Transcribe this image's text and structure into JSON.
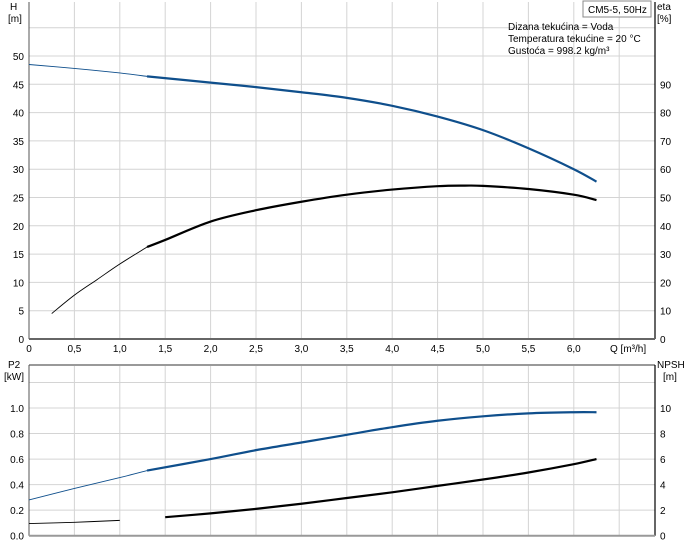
{
  "chart_data": [
    {
      "type": "line",
      "title": "CM5-5, 50Hz",
      "annotations": [
        "Dizana tekućina = Voda",
        "Temperatura tekućine = 20 °C",
        "Gustoća = 998.2 kg/m³"
      ],
      "xlabel": "Q [m³/h]",
      "xticks": [
        "0",
        "0,5",
        "1,0",
        "1,5",
        "2,0",
        "2,5",
        "3,0",
        "3,5",
        "4,0",
        "4,5",
        "5,0",
        "5,5",
        "6,0"
      ],
      "xlim": [
        0,
        6.9
      ],
      "ylabel_left": [
        "H",
        "[m]"
      ],
      "ylabel_right": [
        "eta",
        "[%]"
      ],
      "yticks_left": [
        5,
        10,
        15,
        20,
        25,
        30,
        35,
        40,
        45,
        50
      ],
      "yticks_right": [
        0,
        10,
        20,
        30,
        40,
        50,
        60,
        70,
        80,
        90
      ],
      "x_zero_label": "0",
      "ylim_left": [
        0,
        59.5
      ],
      "ylim_right": [
        0,
        119
      ],
      "grid": true,
      "series": [
        {
          "axis": "left",
          "color": "#0f4f8c",
          "x": [
            0,
            0.5,
            1,
            1.3,
            2,
            2.5,
            3,
            3.5,
            4,
            4.5,
            5,
            5.5,
            6,
            6.25
          ],
          "y": [
            48.5,
            47.8,
            47.0,
            46.4,
            45.3,
            44.5,
            43.6,
            42.6,
            41.2,
            39.3,
            36.9,
            33.7,
            30.0,
            27.8
          ]
        },
        {
          "axis": "right",
          "color": "#000000",
          "x": [
            0.25,
            0.5,
            0.75,
            1,
            1.3,
            1.5,
            2,
            2.5,
            3,
            3.5,
            4,
            4.5,
            4.8,
            5,
            5.5,
            6,
            6.25
          ],
          "y": [
            9,
            15.5,
            21,
            26.5,
            32.5,
            35,
            41.5,
            45.5,
            48.5,
            51,
            52.8,
            54,
            54.2,
            54.1,
            53,
            51,
            49.1
          ]
        }
      ]
    },
    {
      "type": "line",
      "ylabel_left": [
        "P2",
        "[kW]"
      ],
      "ylabel_right": [
        "NPSH",
        "[m]"
      ],
      "yticks_left": [
        "0.0",
        "0.2",
        "0.4",
        "0.6",
        "0.8",
        "1.0"
      ],
      "yticks_right": [
        "0",
        "2",
        "4",
        "6",
        "8",
        "10"
      ],
      "xlim": [
        0,
        6.9
      ],
      "ylim_left": [
        0,
        1.2
      ],
      "ylim_right": [
        0,
        12
      ],
      "grid": true,
      "series": [
        {
          "axis": "left",
          "color": "#0f4f8c",
          "x": [
            0,
            0.5,
            1,
            1.3,
            2,
            2.5,
            3,
            3.5,
            4,
            4.5,
            5,
            5.5,
            6,
            6.25
          ],
          "y": [
            0.28,
            0.37,
            0.455,
            0.51,
            0.6,
            0.67,
            0.73,
            0.79,
            0.85,
            0.9,
            0.935,
            0.958,
            0.967,
            0.967
          ]
        },
        {
          "axis": "right",
          "color": "#000000",
          "x": [
            0,
            0.5,
            1,
            1.5,
            2,
            2.5,
            3,
            3.5,
            4,
            4.5,
            5,
            5.5,
            6,
            6.25
          ],
          "y": [
            0.95,
            1.05,
            1.2,
            1.45,
            1.75,
            2.1,
            2.5,
            2.95,
            3.4,
            3.9,
            4.4,
            4.95,
            5.6,
            6.0
          ]
        }
      ]
    }
  ]
}
